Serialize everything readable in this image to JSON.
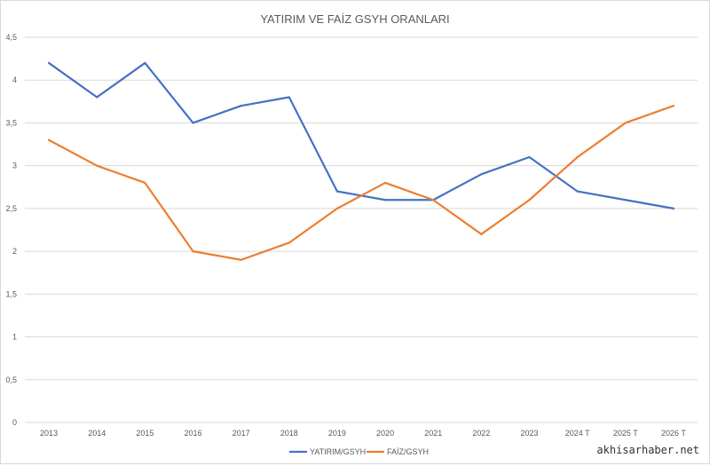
{
  "chart_data": {
    "type": "line",
    "title": "YATIRIM VE FAİZ GSYH ORANLARI",
    "categories": [
      "2013",
      "2014",
      "2015",
      "2016",
      "2017",
      "2018",
      "2019",
      "2020",
      "2021",
      "2022",
      "2023",
      "2024 T",
      "2025 T",
      "2026 T"
    ],
    "series": [
      {
        "name": "YATIRIM/GSYH",
        "color": "#4472c4",
        "values": [
          4.2,
          3.8,
          4.2,
          3.5,
          3.7,
          3.8,
          2.7,
          2.6,
          2.6,
          2.9,
          3.1,
          2.7,
          2.6,
          2.5
        ]
      },
      {
        "name": "FAİZ/GSYH",
        "color": "#ed7d31",
        "values": [
          3.3,
          3.0,
          2.8,
          2.0,
          1.9,
          2.1,
          2.5,
          2.8,
          2.6,
          2.2,
          2.6,
          3.1,
          3.5,
          3.7
        ]
      }
    ],
    "ylim": [
      0,
      4.5
    ],
    "yticks": [
      "0",
      "0,5",
      "1",
      "1,5",
      "2",
      "2,5",
      "3",
      "3,5",
      "4",
      "4,5"
    ],
    "grid": true,
    "legend": "bottom"
  },
  "watermark": "akhisarhaber.net"
}
